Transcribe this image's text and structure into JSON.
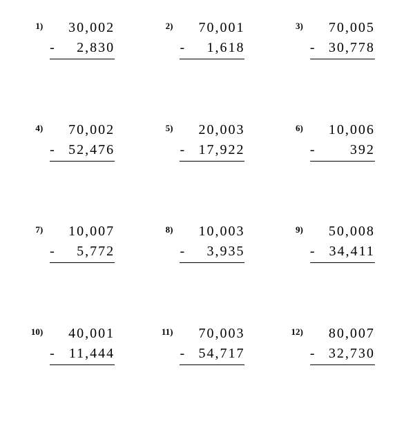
{
  "background_color": "#ffffff",
  "text_color": "#000000",
  "font_family": "Times New Roman",
  "number_fontsize": 20,
  "label_fontsize": 13,
  "letter_spacing": 2,
  "operator": "-",
  "grid": {
    "rows": 4,
    "cols": 3
  },
  "problems": [
    {
      "n": "1)",
      "top": "30,002",
      "bot": "2,830"
    },
    {
      "n": "2)",
      "top": "70,001",
      "bot": "1,618"
    },
    {
      "n": "3)",
      "top": "70,005",
      "bot": "30,778"
    },
    {
      "n": "4)",
      "top": "70,002",
      "bot": "52,476"
    },
    {
      "n": "5)",
      "top": "20,003",
      "bot": "17,922"
    },
    {
      "n": "6)",
      "top": "10,006",
      "bot": "392"
    },
    {
      "n": "7)",
      "top": "10,007",
      "bot": "5,772"
    },
    {
      "n": "8)",
      "top": "10,003",
      "bot": "3,935"
    },
    {
      "n": "9)",
      "top": "50,008",
      "bot": "34,411"
    },
    {
      "n": "10)",
      "top": "40,001",
      "bot": "11,444"
    },
    {
      "n": "11)",
      "top": "70,003",
      "bot": "54,717"
    },
    {
      "n": "12)",
      "top": "80,007",
      "bot": "32,730"
    }
  ]
}
